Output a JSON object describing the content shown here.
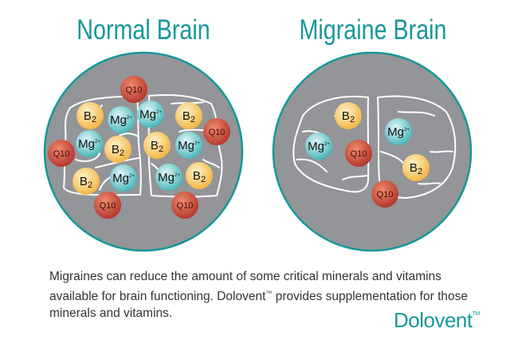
{
  "titles": {
    "normal": "Normal Brain",
    "migraine": "Migraine Brain"
  },
  "nutrients": {
    "b2": {
      "base": "B",
      "sub": "2",
      "color": "#f7c85a"
    },
    "mg": {
      "base": "Mg",
      "sup": "2+",
      "color": "#6fc9cc"
    },
    "q10": {
      "label": "Q10",
      "color": "#c9463a"
    }
  },
  "normal_brain": {
    "items": [
      "q10",
      "b2",
      "mg",
      "mg",
      "b2",
      "q10",
      "mg",
      "b2",
      "b2",
      "mg",
      "q10",
      "b2",
      "mg",
      "mg",
      "b2",
      "q10",
      "q10"
    ]
  },
  "migraine_brain": {
    "items": [
      "b2",
      "mg",
      "mg",
      "q10",
      "b2",
      "q10"
    ]
  },
  "caption": {
    "part1": "Migraines can reduce the amount of some critical minerals and vitamins available for brain functioning. Dolovent",
    "tm": "™",
    "part2": " provides supplementation for those minerals and vitamins."
  },
  "logo": {
    "name": "Dolovent",
    "tm": "TM"
  },
  "colors": {
    "accent": "#17979a",
    "circle_fill": "#939598"
  }
}
